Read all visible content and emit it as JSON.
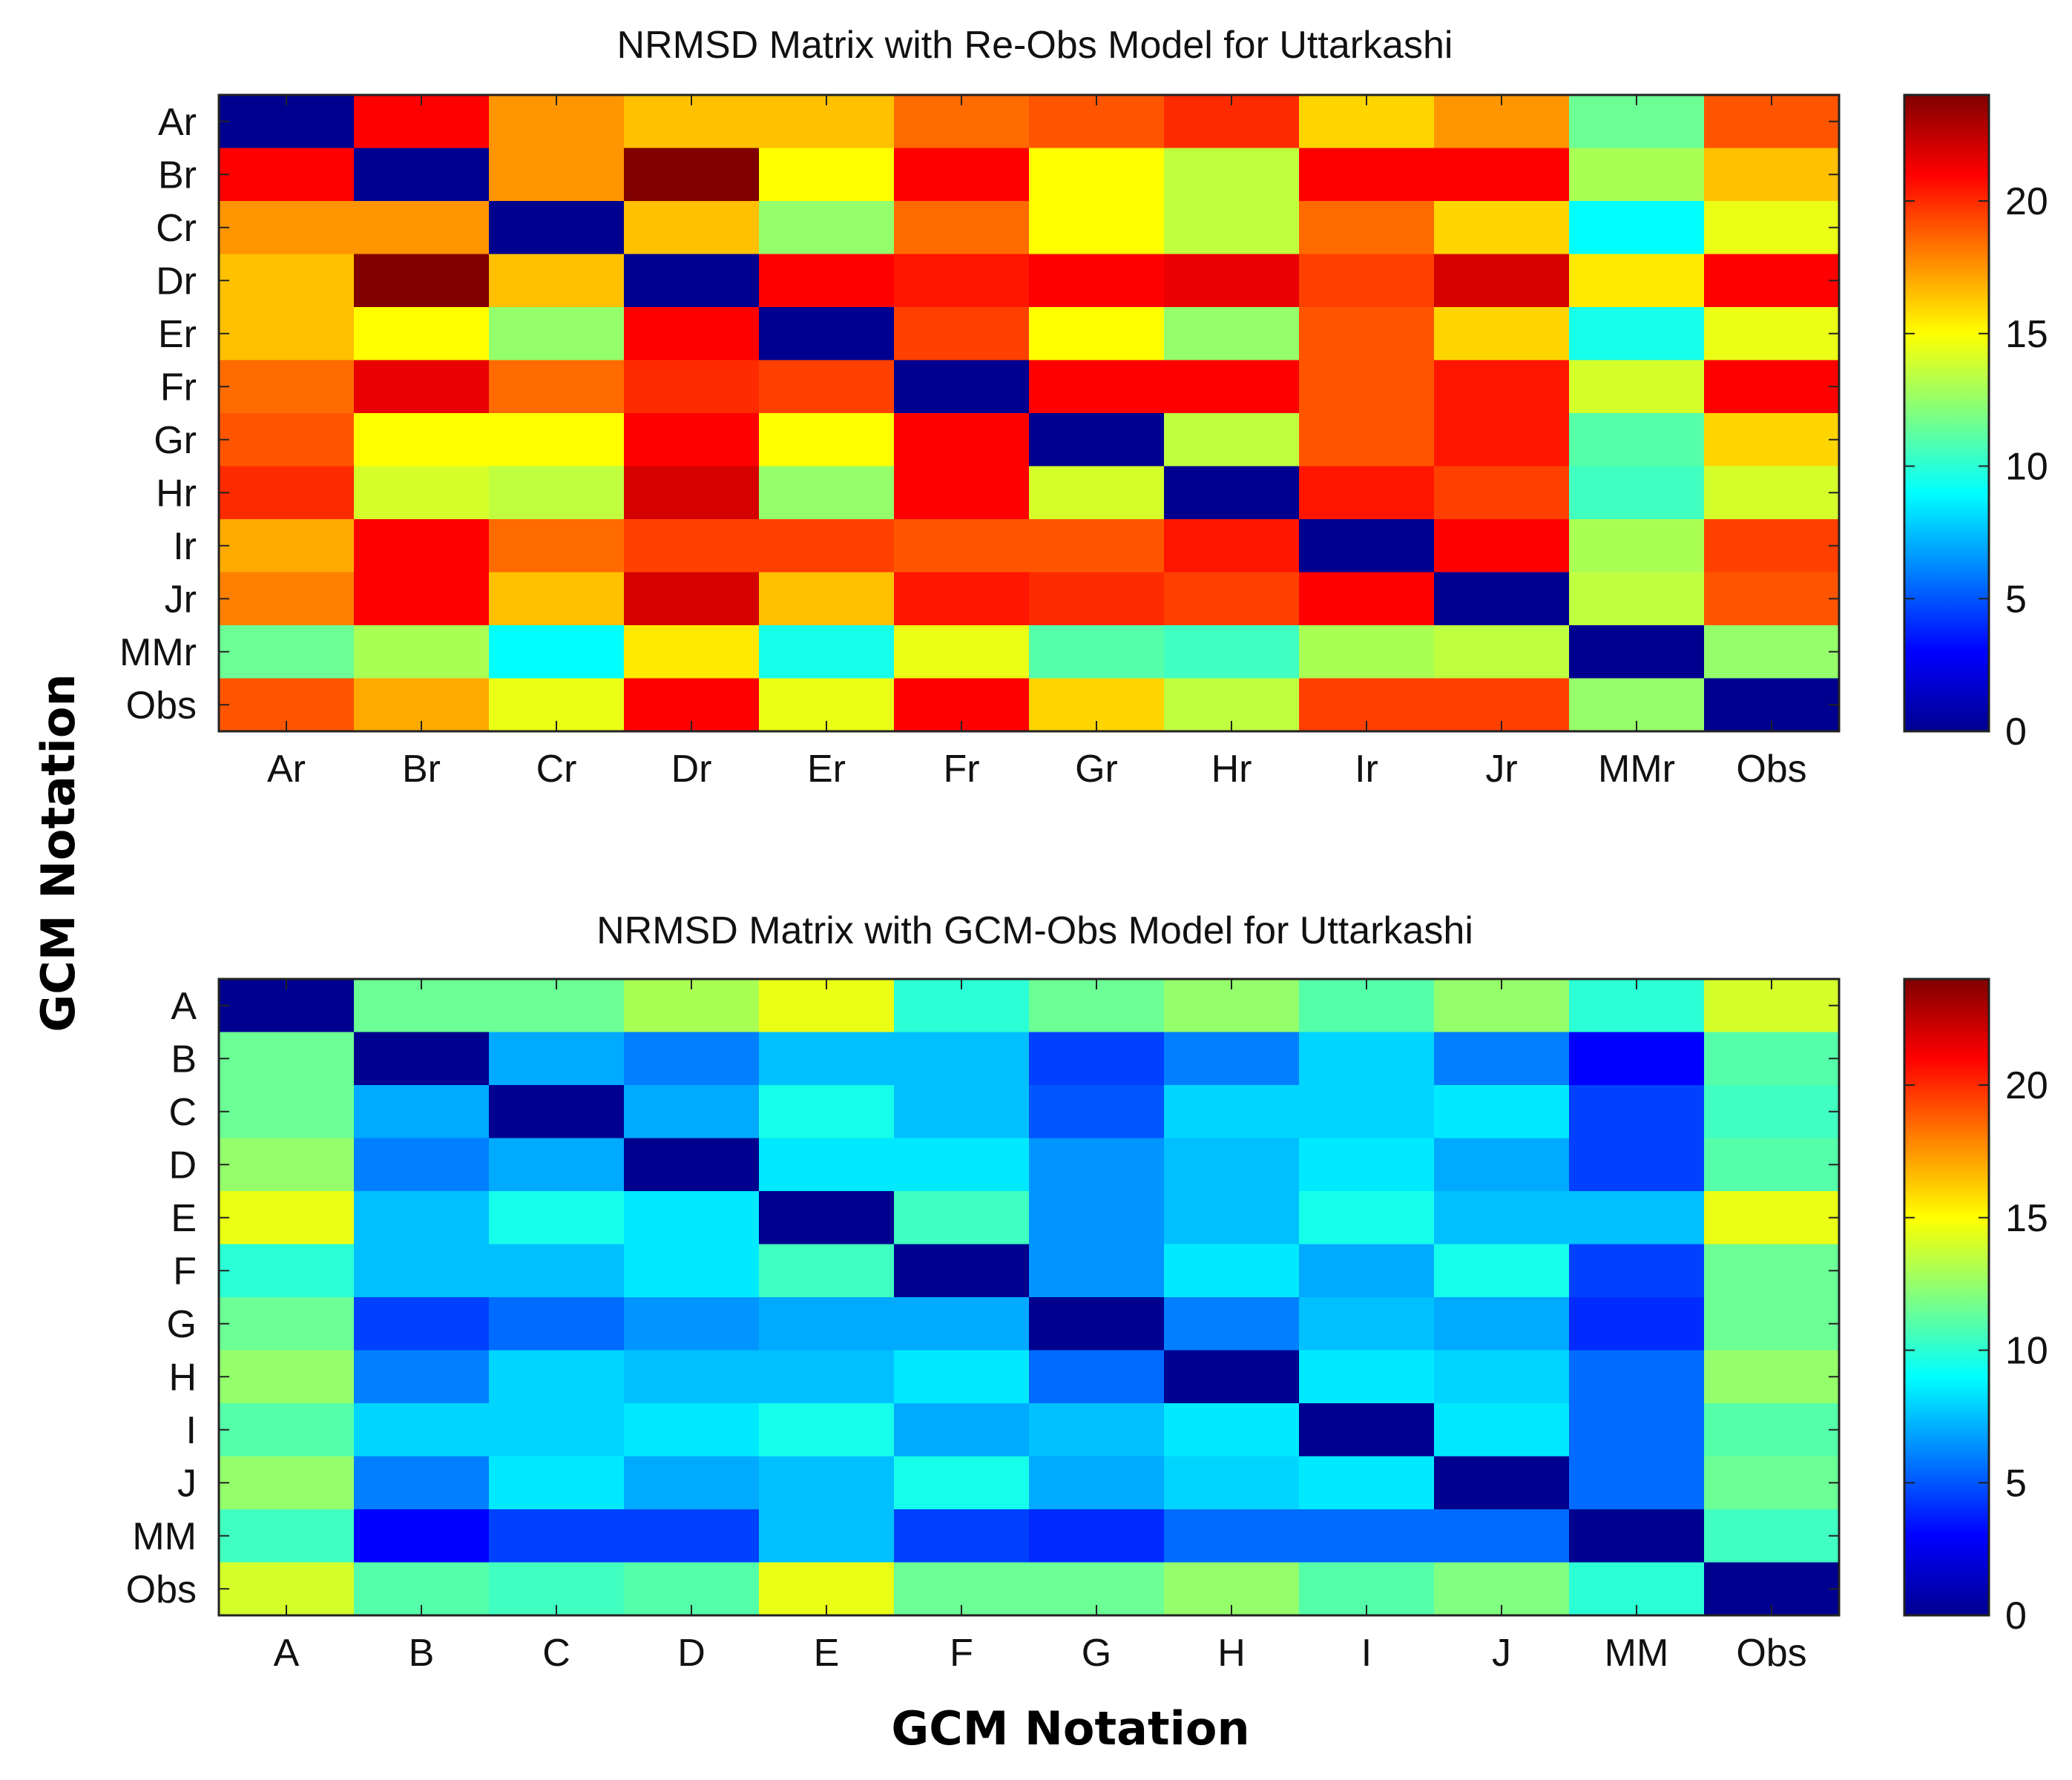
{
  "figure": {
    "shared_xlabel": "GCM Notation",
    "shared_ylabel": "GCM Notation"
  },
  "colormap": [
    "#00008f",
    "#0000ff",
    "#0080ff",
    "#00ffff",
    "#80ff80",
    "#ffff00",
    "#ff8000",
    "#ff0000",
    "#800000"
  ],
  "chart_data": [
    {
      "type": "heatmap",
      "title": "NRMSD Matrix with Re-Obs Model for Uttarkashi",
      "xlabel": "GCM Notation",
      "ylabel": "GCM Notation",
      "categories_x": [
        "Ar",
        "Br",
        "Cr",
        "Dr",
        "Er",
        "Fr",
        "Gr",
        "Hr",
        "Ir",
        "Jr",
        "MMr",
        "Obs"
      ],
      "categories_y": [
        "Ar",
        "Br",
        "Cr",
        "Dr",
        "Er",
        "Fr",
        "Gr",
        "Hr",
        "Ir",
        "Jr",
        "MMr",
        "Obs"
      ],
      "colorbar": {
        "range": [
          0,
          24
        ],
        "ticks": [
          0,
          5,
          10,
          15,
          20
        ]
      },
      "values": [
        [
          0,
          21,
          17.5,
          16.5,
          16.5,
          18.5,
          19,
          20,
          16,
          17.5,
          11.5,
          19
        ],
        [
          21,
          0,
          17.5,
          24,
          15,
          21,
          15,
          13.5,
          21,
          21,
          13,
          16.5
        ],
        [
          17.5,
          17.5,
          0,
          16.5,
          12.5,
          18.5,
          15,
          13.5,
          18.5,
          16,
          9,
          14.5
        ],
        [
          16.5,
          24,
          16.5,
          0,
          21,
          20.5,
          21,
          21.5,
          19.5,
          22,
          15.5,
          21
        ],
        [
          16.5,
          15,
          12.5,
          21,
          0,
          19.5,
          15,
          12.5,
          19,
          16,
          9.5,
          14.5
        ],
        [
          18.5,
          21.5,
          18.5,
          20,
          19.5,
          0,
          21,
          21,
          19,
          20.5,
          14,
          21
        ],
        [
          19,
          15,
          15,
          21,
          15,
          21,
          0,
          13.5,
          19,
          20.5,
          11,
          16
        ],
        [
          20,
          14,
          13.5,
          22,
          12.5,
          21,
          14,
          0,
          20.5,
          19.5,
          10.5,
          14
        ],
        [
          17,
          21,
          18.5,
          19.5,
          19.5,
          19,
          19,
          20.5,
          0,
          21,
          13,
          19.5
        ],
        [
          18,
          21,
          16.5,
          22,
          16.5,
          20.5,
          20,
          19.5,
          21,
          0,
          13.5,
          19
        ],
        [
          11.5,
          13,
          9,
          15.5,
          9.5,
          14.5,
          11,
          10.5,
          13,
          13.5,
          0,
          12.5
        ],
        [
          19,
          17,
          14.5,
          21,
          14.5,
          21,
          16,
          13.5,
          19.5,
          19.5,
          12.5,
          0
        ]
      ]
    },
    {
      "type": "heatmap",
      "title": "NRMSD Matrix with GCM-Obs Model for Uttarkashi",
      "xlabel": "GCM Notation",
      "ylabel": "GCM Notation",
      "categories_x": [
        "A",
        "B",
        "C",
        "D",
        "E",
        "F",
        "G",
        "H",
        "I",
        "J",
        "MM",
        "Obs"
      ],
      "categories_y": [
        "A",
        "B",
        "C",
        "D",
        "E",
        "F",
        "G",
        "H",
        "I",
        "J",
        "MM",
        "Obs"
      ],
      "colorbar": {
        "range": [
          0,
          24
        ],
        "ticks": [
          0,
          5,
          10,
          15,
          20
        ]
      },
      "values": [
        [
          0,
          11.5,
          11.5,
          13,
          14.5,
          10,
          11.5,
          12.5,
          11,
          12.5,
          10,
          14
        ],
        [
          11.5,
          0,
          7,
          6,
          7.5,
          7.5,
          4.5,
          6,
          8,
          6,
          3,
          11
        ],
        [
          11.5,
          7,
          0,
          7,
          9.5,
          7.5,
          5,
          8,
          8,
          8.5,
          4.5,
          10.5
        ],
        [
          12.5,
          6,
          7,
          0,
          8.5,
          8.5,
          6.5,
          7.5,
          8.5,
          7,
          4.5,
          11
        ],
        [
          14.5,
          7.5,
          9.5,
          8.5,
          0,
          10.5,
          6.5,
          7.5,
          9.5,
          7.5,
          7.5,
          14.5
        ],
        [
          10,
          7.5,
          7.5,
          8.5,
          10.5,
          0,
          6.5,
          8.5,
          7,
          9.5,
          4.5,
          11.5
        ],
        [
          11.5,
          4.5,
          5.5,
          6.5,
          7,
          7,
          0,
          6,
          7.5,
          7,
          4,
          11.5
        ],
        [
          12.5,
          6,
          8,
          7.5,
          7.5,
          8.5,
          5.5,
          0,
          8.5,
          8,
          5.5,
          12.5
        ],
        [
          11,
          8,
          8,
          8.5,
          9.5,
          7,
          7.5,
          8.5,
          0,
          8.5,
          5.5,
          11
        ],
        [
          12.5,
          6,
          8.5,
          7,
          7.5,
          9.5,
          7,
          8,
          8.5,
          0,
          5.5,
          11.5
        ],
        [
          10.5,
          3,
          4.5,
          4.5,
          7.5,
          4.5,
          4,
          5.5,
          5.5,
          5.5,
          0,
          10.5
        ],
        [
          14,
          11,
          10.5,
          11,
          14.5,
          11.5,
          11.5,
          12.5,
          11,
          12,
          10,
          0
        ]
      ]
    }
  ]
}
